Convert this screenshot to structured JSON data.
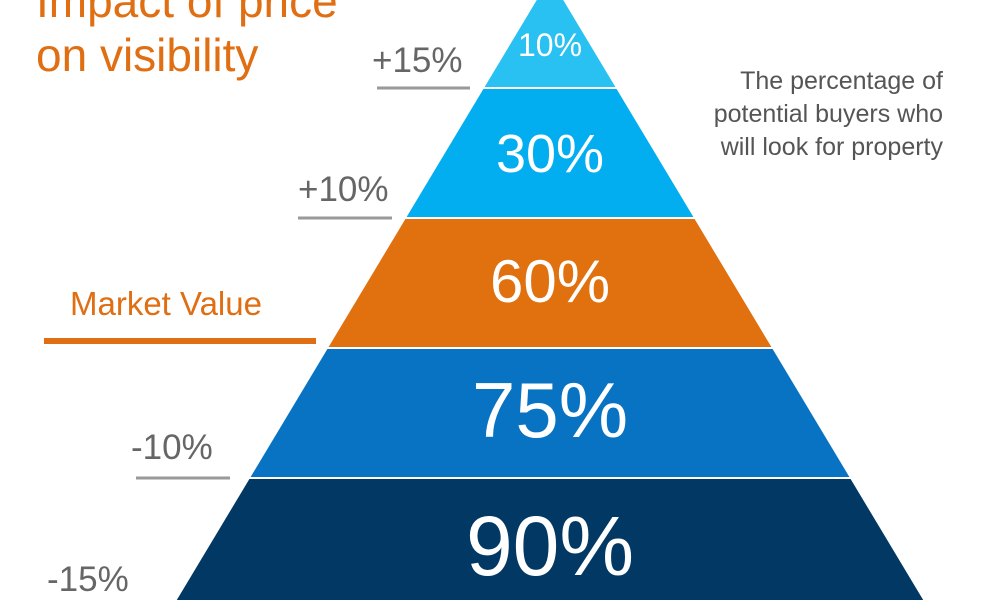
{
  "title": {
    "line1": "Impact of price",
    "line2": "on visibility"
  },
  "caption": {
    "line1": "The percentage of",
    "line2": "potential buyers who",
    "line3": "will look for property"
  },
  "market_value_label": "Market Value",
  "price_labels": [
    "+15%",
    "+10%",
    "-10%",
    "-15%"
  ],
  "tiers": [
    {
      "label": "10%",
      "value": 10,
      "color": "#29c0f2"
    },
    {
      "label": "30%",
      "value": 30,
      "color": "#03aef0"
    },
    {
      "label": "60%",
      "value": 60,
      "color": "#e1700f"
    },
    {
      "label": "75%",
      "value": 75,
      "color": "#0872c3"
    },
    {
      "label": "90%",
      "value": 90,
      "color": "#023864"
    }
  ],
  "colors": {
    "accent_orange": "#e06e12",
    "guide_gray": "#999999",
    "label_gray": "#666666"
  }
}
